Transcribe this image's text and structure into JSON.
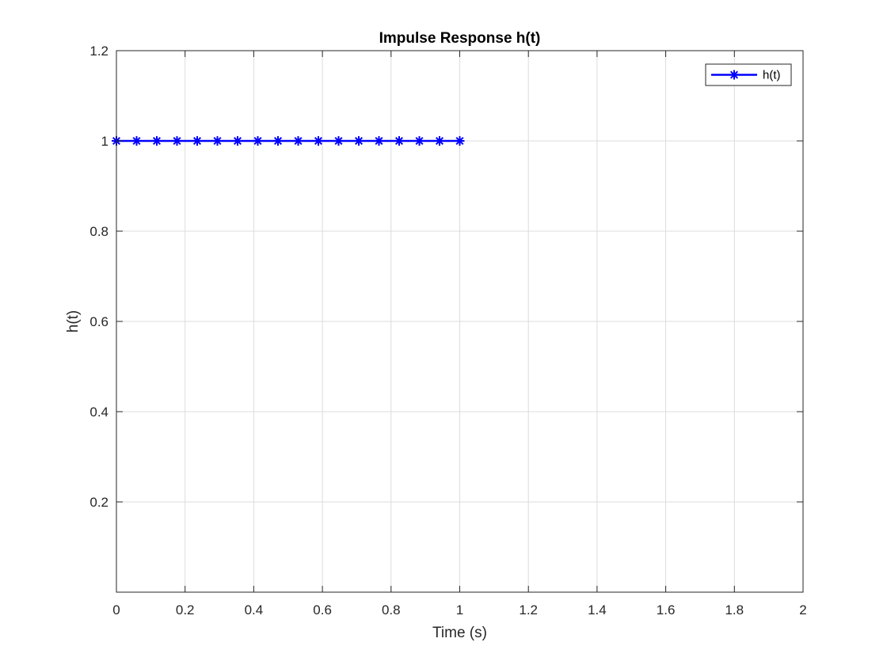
{
  "chart_data": {
    "type": "line",
    "title": "Impulse Response h(t)",
    "xlabel": "Time (s)",
    "ylabel": "h(t)",
    "xlim": [
      0,
      2
    ],
    "ylim": [
      0,
      1.2
    ],
    "grid": true,
    "legend_position": "top-right",
    "x_ticks": [
      0,
      0.2,
      0.4,
      0.6,
      0.8,
      1,
      1.2,
      1.4,
      1.6,
      1.8,
      2
    ],
    "x_tick_labels": [
      "0",
      "0.2",
      "0.4",
      "0.6",
      "0.8",
      "1",
      "1.2",
      "1.4",
      "1.6",
      "1.8",
      "2"
    ],
    "y_ticks": [
      0.2,
      0.4,
      0.6,
      0.8,
      1,
      1.2
    ],
    "y_tick_labels": [
      "0.2",
      "0.4",
      "0.6",
      "0.8",
      "1",
      "1.2"
    ],
    "series": [
      {
        "name": "h(t)",
        "color": "#0000ff",
        "marker": "asterisk",
        "x": [
          0,
          0.0588,
          0.1176,
          0.1765,
          0.2353,
          0.2941,
          0.3529,
          0.4118,
          0.4706,
          0.5294,
          0.5882,
          0.6471,
          0.7059,
          0.7647,
          0.8235,
          0.8824,
          0.9412,
          1.0
        ],
        "y": [
          1,
          1,
          1,
          1,
          1,
          1,
          1,
          1,
          1,
          1,
          1,
          1,
          1,
          1,
          1,
          1,
          1,
          1
        ]
      }
    ]
  }
}
